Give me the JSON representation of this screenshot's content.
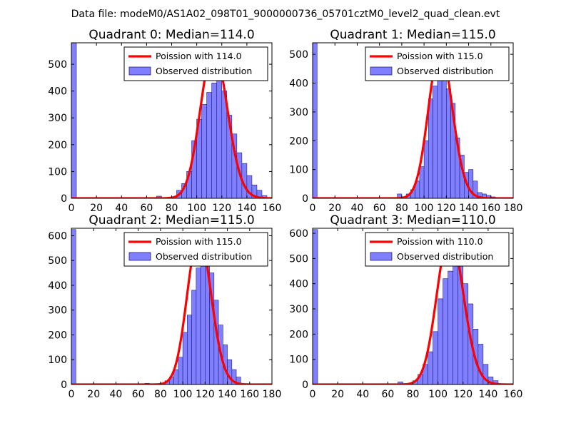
{
  "figure_title": "Data file: modeM0/AS1A02_098T01_9000000736_05701cztM0_level2_quad_clean.evt",
  "colors": {
    "bar_fill": "#7f7fff",
    "bar_edge": "#1f1f7a",
    "curve": "#ff0000",
    "axes": "#000000"
  },
  "chart_data": [
    {
      "type": "bar",
      "title": "Quadrant 0: Median=114.0",
      "legend": {
        "position": "upper-right",
        "curve_label": "Poission with 114.0",
        "bars_label": "Observed distribution"
      },
      "xlim": [
        0,
        160
      ],
      "ylim": [
        0,
        580
      ],
      "xticks": [
        0,
        20,
        40,
        60,
        80,
        100,
        120,
        140,
        160
      ],
      "xtick_labels": [
        "0",
        "20",
        "40",
        "60",
        "80",
        "100",
        "120",
        "140",
        "160"
      ],
      "yticks": [
        0,
        100,
        200,
        300,
        400,
        500
      ],
      "ytick_labels": [
        "0",
        "100",
        "200",
        "300",
        "400",
        "500"
      ],
      "poisson_mean": 114.0,
      "poisson_peak": 556,
      "bin_width": 4,
      "bin_starts": [
        0,
        68,
        84,
        88,
        92,
        96,
        100,
        104,
        108,
        112,
        116,
        120,
        124,
        128,
        132,
        136,
        140,
        144,
        148,
        152
      ],
      "values": [
        580,
        8,
        30,
        55,
        100,
        215,
        295,
        350,
        395,
        430,
        460,
        400,
        310,
        240,
        170,
        130,
        85,
        50,
        30,
        10
      ]
    },
    {
      "type": "bar",
      "title": "Quadrant 1: Median=115.0",
      "legend": {
        "position": "upper-right",
        "curve_label": "Poission with 115.0",
        "bars_label": "Observed distribution"
      },
      "xlim": [
        0,
        180
      ],
      "ylim": [
        0,
        540
      ],
      "xticks": [
        0,
        20,
        40,
        60,
        80,
        100,
        120,
        140,
        160,
        180
      ],
      "xtick_labels": [
        "0",
        "20",
        "40",
        "60",
        "80",
        "100",
        "120",
        "140",
        "160",
        "180"
      ],
      "yticks": [
        0,
        100,
        200,
        300,
        400,
        500
      ],
      "ytick_labels": [
        "0",
        "100",
        "200",
        "300",
        "400",
        "500"
      ],
      "poisson_mean": 115.0,
      "poisson_peak": 515,
      "bin_width": 4,
      "bin_starts": [
        0,
        76,
        84,
        88,
        92,
        96,
        100,
        104,
        108,
        112,
        116,
        120,
        124,
        128,
        132,
        136,
        140,
        144,
        148,
        152,
        156,
        160
      ],
      "values": [
        540,
        15,
        15,
        30,
        60,
        110,
        200,
        345,
        390,
        480,
        410,
        380,
        330,
        210,
        150,
        90,
        100,
        60,
        20,
        15,
        10,
        5
      ]
    },
    {
      "type": "bar",
      "title": "Quadrant 2: Median=115.0",
      "legend": {
        "position": "upper-right",
        "curve_label": "Poission with 115.0",
        "bars_label": "Observed distribution"
      },
      "xlim": [
        0,
        180
      ],
      "ylim": [
        0,
        630
      ],
      "xticks": [
        0,
        20,
        40,
        60,
        80,
        100,
        120,
        140,
        160,
        180
      ],
      "xtick_labels": [
        "0",
        "20",
        "40",
        "60",
        "80",
        "100",
        "120",
        "140",
        "160",
        "180"
      ],
      "yticks": [
        0,
        100,
        200,
        300,
        400,
        500,
        600
      ],
      "ytick_labels": [
        "0",
        "100",
        "200",
        "300",
        "400",
        "500",
        "600"
      ],
      "poisson_mean": 115.0,
      "poisson_peak": 600,
      "bin_width": 4,
      "bin_starts": [
        0,
        66,
        84,
        88,
        92,
        96,
        100,
        104,
        108,
        112,
        116,
        120,
        124,
        128,
        132,
        136,
        140,
        144,
        148
      ],
      "values": [
        625,
        5,
        15,
        30,
        60,
        110,
        210,
        280,
        380,
        470,
        490,
        530,
        450,
        340,
        240,
        160,
        100,
        60,
        30
      ]
    },
    {
      "type": "bar",
      "title": "Quadrant 3: Median=110.0",
      "legend": {
        "position": "upper-right",
        "curve_label": "Poission with 110.0",
        "bars_label": "Observed distribution"
      },
      "xlim": [
        0,
        160
      ],
      "ylim": [
        0,
        620
      ],
      "xticks": [
        0,
        20,
        40,
        60,
        80,
        100,
        120,
        140,
        160
      ],
      "xtick_labels": [
        "0",
        "20",
        "40",
        "60",
        "80",
        "100",
        "120",
        "140",
        "160"
      ],
      "yticks": [
        0,
        100,
        200,
        300,
        400,
        500,
        600
      ],
      "ytick_labels": [
        "0",
        "100",
        "200",
        "300",
        "400",
        "500",
        "600"
      ],
      "poisson_mean": 110.0,
      "poisson_peak": 597,
      "bin_width": 4,
      "bin_starts": [
        0,
        68,
        80,
        84,
        88,
        92,
        96,
        100,
        104,
        108,
        112,
        116,
        120,
        124,
        128,
        132,
        136,
        140,
        144
      ],
      "values": [
        615,
        10,
        15,
        40,
        80,
        130,
        210,
        340,
        420,
        450,
        490,
        530,
        400,
        320,
        220,
        160,
        80,
        30,
        15
      ]
    }
  ]
}
